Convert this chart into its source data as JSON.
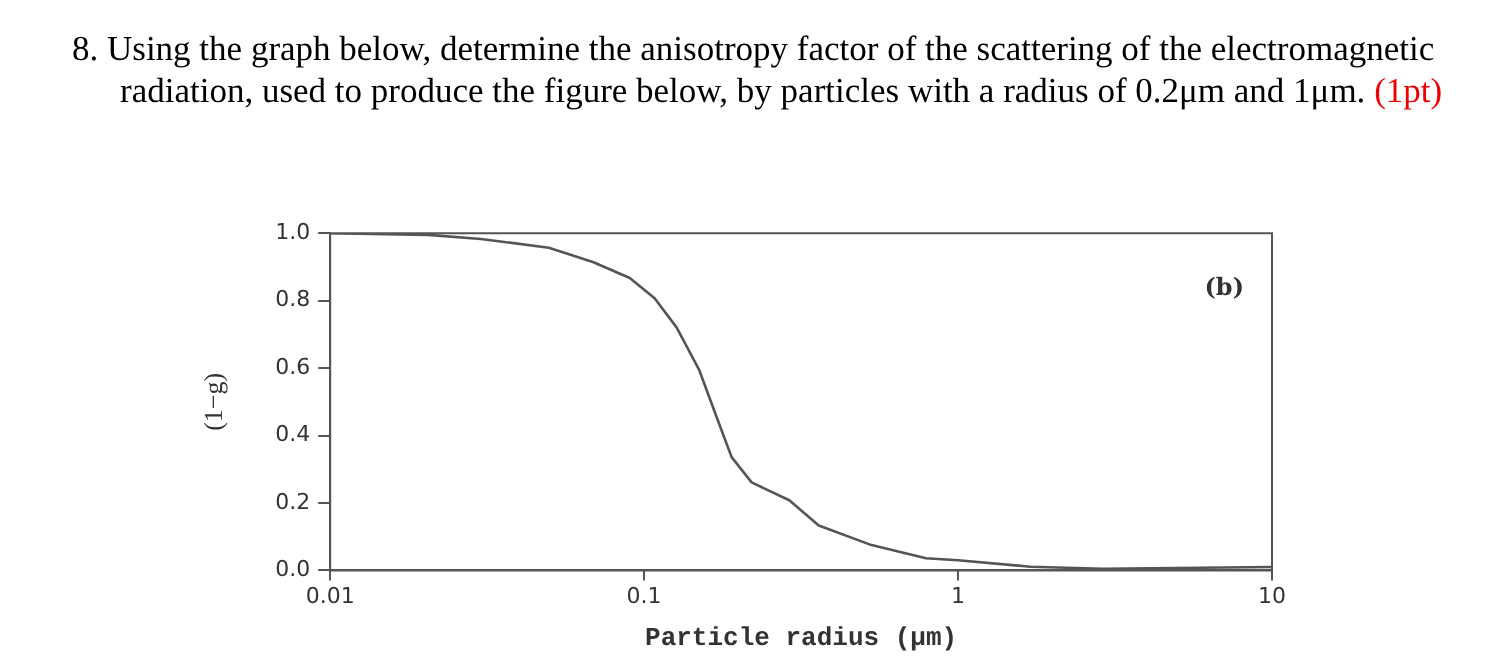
{
  "chart_data": {
    "type": "line",
    "title": "8. Using the graph below, determine the anisotropy factor of the scattering of the electromagnetic radiation, used to produce the figure below, by particles with a radius of 0.2μm and 1μm.",
    "annotations": [
      "(1pt)",
      "(b)"
    ],
    "xlabel": "Particle radius (μm)",
    "ylabel": "(1−g)",
    "x": [
      0.01,
      0.0205,
      0.0302,
      0.0497,
      0.069,
      0.09,
      0.108,
      0.127,
      0.15,
      0.172,
      0.19,
      0.22,
      0.29,
      0.36,
      0.53,
      0.79,
      1,
      1.7,
      2.9,
      10
    ],
    "series": [
      {
        "color": "#555555",
        "values": [
          1.0,
          0.995,
          0.983,
          0.957,
          0.914,
          0.867,
          0.807,
          0.72,
          0.593,
          0.443,
          0.336,
          0.261,
          0.208,
          0.133,
          0.075,
          0.036,
          0.03,
          0.011,
          0.005,
          0.01
        ]
      }
    ],
    "log": "x",
    "xlim": [
      0.01,
      10
    ],
    "xticks": [
      0.01,
      0.1,
      1,
      10
    ],
    "ylim": [
      0,
      1
    ],
    "yticks": [
      {
        "value": 0,
        "label": "0.0"
      },
      {
        "value": 0.2,
        "label": "0.2"
      },
      {
        "value": 0.4,
        "label": "0.4"
      },
      {
        "value": 0.6,
        "label": "0.6"
      },
      {
        "value": 0.8,
        "label": "0.8"
      },
      {
        "value": 1,
        "label": "1.0"
      }
    ],
    "grid": false,
    "legend": false,
    "marker": "none",
    "line_style": "solid"
  }
}
